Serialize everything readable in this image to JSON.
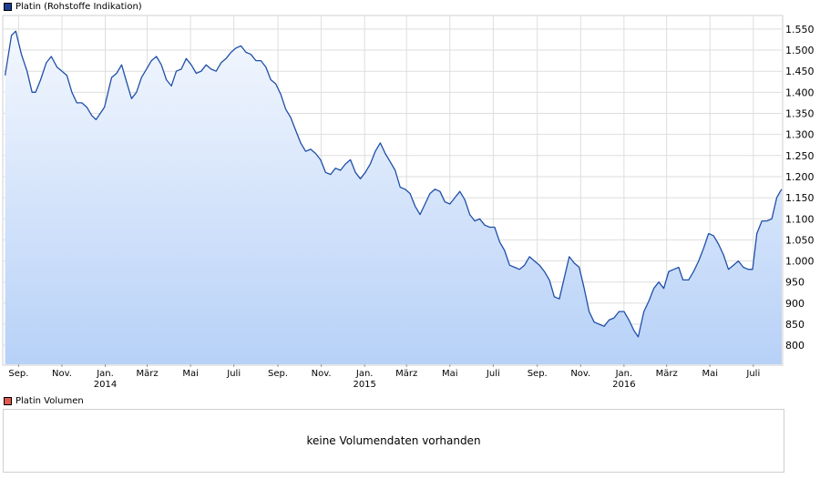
{
  "legend": {
    "price_label": "Platin (Rohstoffe Indikation)",
    "price_color": "#1c3f94",
    "volume_label": "Platin Volumen",
    "volume_color": "#e05a4e"
  },
  "volume_panel": {
    "message": "keine Volumendaten vorhanden"
  },
  "chart_data": {
    "type": "area",
    "series": [
      {
        "name": "Platin (Rohstoffe Indikation)",
        "line_color": "#1f4fa8",
        "fill_top_color": "#f3f7fe",
        "fill_bottom_color": "#b7d1f7",
        "points": [
          [
            "2013-08-13",
            1440
          ],
          [
            "2013-08-22",
            1535
          ],
          [
            "2013-08-28",
            1545
          ],
          [
            "2013-09-05",
            1490
          ],
          [
            "2013-09-13",
            1450
          ],
          [
            "2013-09-20",
            1400
          ],
          [
            "2013-09-25",
            1400
          ],
          [
            "2013-10-02",
            1430
          ],
          [
            "2013-10-10",
            1470
          ],
          [
            "2013-10-17",
            1485
          ],
          [
            "2013-10-25",
            1460
          ],
          [
            "2013-11-01",
            1450
          ],
          [
            "2013-11-08",
            1440
          ],
          [
            "2013-11-15",
            1400
          ],
          [
            "2013-11-22",
            1375
          ],
          [
            "2013-11-29",
            1375
          ],
          [
            "2013-12-06",
            1365
          ],
          [
            "2013-12-13",
            1345
          ],
          [
            "2013-12-19",
            1335
          ],
          [
            "2013-12-31",
            1365
          ],
          [
            "2014-01-10",
            1435
          ],
          [
            "2014-01-17",
            1445
          ],
          [
            "2014-01-24",
            1465
          ],
          [
            "2014-01-31",
            1425
          ],
          [
            "2014-02-07",
            1385
          ],
          [
            "2014-02-14",
            1400
          ],
          [
            "2014-02-21",
            1435
          ],
          [
            "2014-02-28",
            1455
          ],
          [
            "2014-03-07",
            1475
          ],
          [
            "2014-03-14",
            1485
          ],
          [
            "2014-03-21",
            1465
          ],
          [
            "2014-03-28",
            1430
          ],
          [
            "2014-04-04",
            1415
          ],
          [
            "2014-04-11",
            1450
          ],
          [
            "2014-04-18",
            1455
          ],
          [
            "2014-04-25",
            1480
          ],
          [
            "2014-05-02",
            1465
          ],
          [
            "2014-05-09",
            1445
          ],
          [
            "2014-05-16",
            1450
          ],
          [
            "2014-05-23",
            1465
          ],
          [
            "2014-05-30",
            1455
          ],
          [
            "2014-06-06",
            1450
          ],
          [
            "2014-06-13",
            1470
          ],
          [
            "2014-06-20",
            1480
          ],
          [
            "2014-06-27",
            1495
          ],
          [
            "2014-07-04",
            1505
          ],
          [
            "2014-07-11",
            1510
          ],
          [
            "2014-07-18",
            1495
          ],
          [
            "2014-07-25",
            1490
          ],
          [
            "2014-08-01",
            1475
          ],
          [
            "2014-08-08",
            1475
          ],
          [
            "2014-08-15",
            1460
          ],
          [
            "2014-08-22",
            1430
          ],
          [
            "2014-08-29",
            1420
          ],
          [
            "2014-09-05",
            1395
          ],
          [
            "2014-09-12",
            1360
          ],
          [
            "2014-09-19",
            1340
          ],
          [
            "2014-09-26",
            1310
          ],
          [
            "2014-10-03",
            1280
          ],
          [
            "2014-10-10",
            1260
          ],
          [
            "2014-10-17",
            1265
          ],
          [
            "2014-10-24",
            1255
          ],
          [
            "2014-10-31",
            1240
          ],
          [
            "2014-11-07",
            1210
          ],
          [
            "2014-11-14",
            1205
          ],
          [
            "2014-11-21",
            1220
          ],
          [
            "2014-11-28",
            1215
          ],
          [
            "2014-12-05",
            1230
          ],
          [
            "2014-12-12",
            1240
          ],
          [
            "2014-12-19",
            1210
          ],
          [
            "2014-12-26",
            1195
          ],
          [
            "2015-01-02",
            1210
          ],
          [
            "2015-01-09",
            1230
          ],
          [
            "2015-01-16",
            1260
          ],
          [
            "2015-01-23",
            1280
          ],
          [
            "2015-01-30",
            1255
          ],
          [
            "2015-02-06",
            1235
          ],
          [
            "2015-02-13",
            1215
          ],
          [
            "2015-02-20",
            1175
          ],
          [
            "2015-02-27",
            1170
          ],
          [
            "2015-03-06",
            1160
          ],
          [
            "2015-03-13",
            1130
          ],
          [
            "2015-03-20",
            1110
          ],
          [
            "2015-03-27",
            1135
          ],
          [
            "2015-04-03",
            1160
          ],
          [
            "2015-04-10",
            1170
          ],
          [
            "2015-04-17",
            1165
          ],
          [
            "2015-04-24",
            1140
          ],
          [
            "2015-05-01",
            1135
          ],
          [
            "2015-05-08",
            1150
          ],
          [
            "2015-05-15",
            1165
          ],
          [
            "2015-05-22",
            1145
          ],
          [
            "2015-05-29",
            1110
          ],
          [
            "2015-06-05",
            1095
          ],
          [
            "2015-06-12",
            1100
          ],
          [
            "2015-06-19",
            1085
          ],
          [
            "2015-06-26",
            1080
          ],
          [
            "2015-07-03",
            1080
          ],
          [
            "2015-07-10",
            1045
          ],
          [
            "2015-07-17",
            1025
          ],
          [
            "2015-07-24",
            990
          ],
          [
            "2015-07-31",
            985
          ],
          [
            "2015-08-07",
            980
          ],
          [
            "2015-08-14",
            990
          ],
          [
            "2015-08-21",
            1010
          ],
          [
            "2015-08-28",
            1000
          ],
          [
            "2015-09-04",
            990
          ],
          [
            "2015-09-11",
            975
          ],
          [
            "2015-09-18",
            955
          ],
          [
            "2015-09-25",
            915
          ],
          [
            "2015-10-02",
            910
          ],
          [
            "2015-10-09",
            960
          ],
          [
            "2015-10-16",
            1010
          ],
          [
            "2015-10-23",
            995
          ],
          [
            "2015-10-30",
            985
          ],
          [
            "2015-11-06",
            935
          ],
          [
            "2015-11-13",
            880
          ],
          [
            "2015-11-20",
            855
          ],
          [
            "2015-11-27",
            850
          ],
          [
            "2015-12-04",
            845
          ],
          [
            "2015-12-11",
            860
          ],
          [
            "2015-12-18",
            865
          ],
          [
            "2015-12-25",
            880
          ],
          [
            "2016-01-01",
            880
          ],
          [
            "2016-01-08",
            860
          ],
          [
            "2016-01-15",
            835
          ],
          [
            "2016-01-21",
            820
          ],
          [
            "2016-01-29",
            880
          ],
          [
            "2016-02-05",
            905
          ],
          [
            "2016-02-12",
            935
          ],
          [
            "2016-02-19",
            950
          ],
          [
            "2016-02-26",
            935
          ],
          [
            "2016-03-04",
            975
          ],
          [
            "2016-03-11",
            980
          ],
          [
            "2016-03-18",
            985
          ],
          [
            "2016-03-24",
            955
          ],
          [
            "2016-04-01",
            955
          ],
          [
            "2016-04-08",
            975
          ],
          [
            "2016-04-15",
            1000
          ],
          [
            "2016-04-22",
            1030
          ],
          [
            "2016-04-29",
            1065
          ],
          [
            "2016-05-06",
            1060
          ],
          [
            "2016-05-13",
            1040
          ],
          [
            "2016-05-20",
            1015
          ],
          [
            "2016-05-27",
            980
          ],
          [
            "2016-06-03",
            990
          ],
          [
            "2016-06-10",
            1000
          ],
          [
            "2016-06-17",
            985
          ],
          [
            "2016-06-24",
            980
          ],
          [
            "2016-06-30",
            980
          ],
          [
            "2016-07-06",
            1065
          ],
          [
            "2016-07-13",
            1095
          ],
          [
            "2016-07-20",
            1095
          ],
          [
            "2016-07-27",
            1100
          ],
          [
            "2016-08-03",
            1150
          ],
          [
            "2016-08-08",
            1165
          ],
          [
            "2016-08-10",
            1170
          ]
        ]
      }
    ],
    "y_ticks": [
      800,
      850,
      900,
      950,
      1000,
      1050,
      1100,
      1150,
      1200,
      1250,
      1300,
      1350,
      1400,
      1450,
      1500,
      1550
    ],
    "y_tick_labels": [
      "800",
      "850",
      "900",
      "950",
      "1.000",
      "1.050",
      "1.100",
      "1.150",
      "1.200",
      "1.250",
      "1.300",
      "1.350",
      "1.400",
      "1.450",
      "1.500",
      "1.550"
    ],
    "ylim": [
      755,
      1580
    ],
    "xlim": [
      "2013-08-11",
      "2016-08-10"
    ],
    "x_ticks": [
      {
        "date": "2013-09-01",
        "label": "Sep.",
        "year": ""
      },
      {
        "date": "2013-11-01",
        "label": "Nov.",
        "year": ""
      },
      {
        "date": "2014-01-01",
        "label": "Jan.",
        "year": "2014"
      },
      {
        "date": "2014-03-01",
        "label": "März",
        "year": ""
      },
      {
        "date": "2014-05-01",
        "label": "Mai",
        "year": ""
      },
      {
        "date": "2014-07-01",
        "label": "Juli",
        "year": ""
      },
      {
        "date": "2014-09-01",
        "label": "Sep.",
        "year": ""
      },
      {
        "date": "2014-11-01",
        "label": "Nov.",
        "year": ""
      },
      {
        "date": "2015-01-01",
        "label": "Jan.",
        "year": "2015"
      },
      {
        "date": "2015-03-01",
        "label": "März",
        "year": ""
      },
      {
        "date": "2015-05-01",
        "label": "Mai",
        "year": ""
      },
      {
        "date": "2015-07-01",
        "label": "Juli",
        "year": ""
      },
      {
        "date": "2015-09-01",
        "label": "Sep.",
        "year": ""
      },
      {
        "date": "2015-11-01",
        "label": "Nov.",
        "year": ""
      },
      {
        "date": "2016-01-01",
        "label": "Jan.",
        "year": "2016"
      },
      {
        "date": "2016-03-01",
        "label": "März",
        "year": ""
      },
      {
        "date": "2016-05-01",
        "label": "Mai",
        "year": ""
      },
      {
        "date": "2016-07-01",
        "label": "Juli",
        "year": ""
      }
    ],
    "grid": true,
    "y_axis_side": "right",
    "legend_position": "top-left"
  }
}
